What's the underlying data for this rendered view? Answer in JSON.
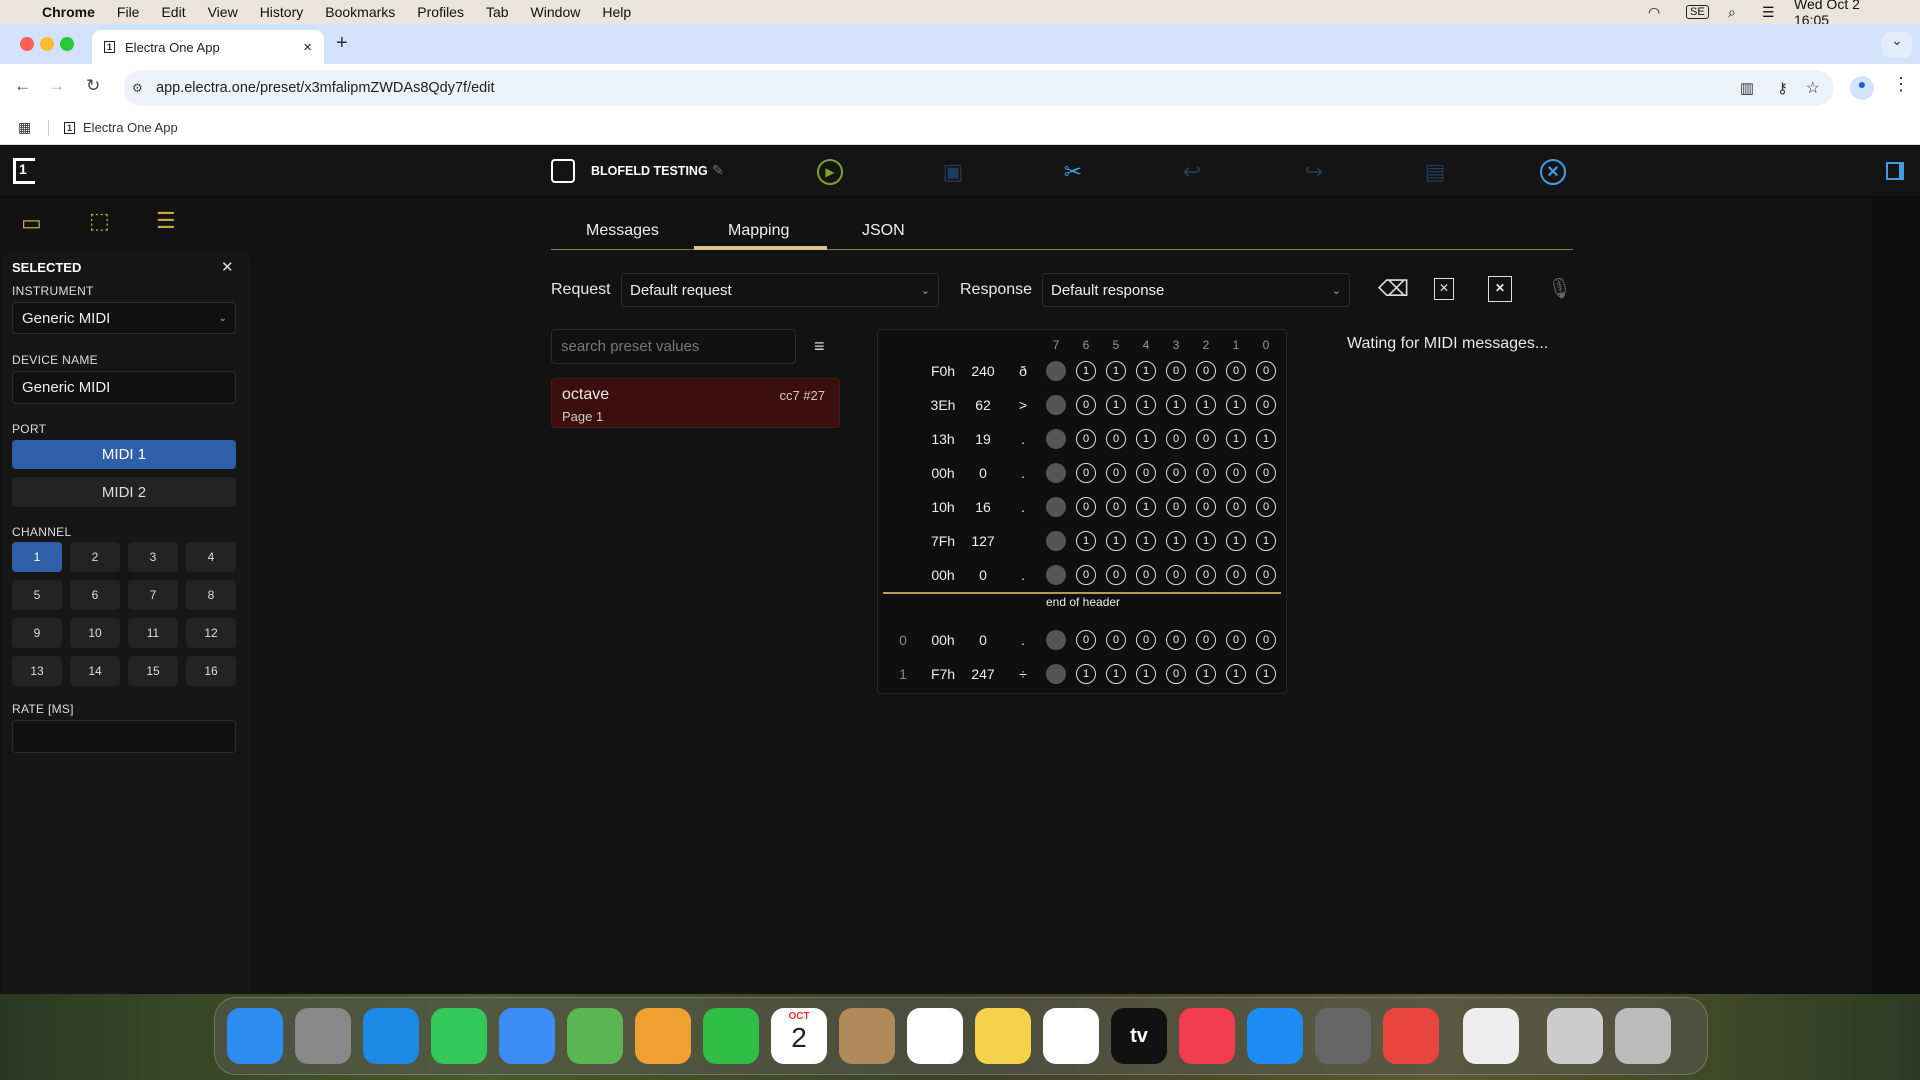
{
  "menubar": {
    "apple": "",
    "app": "Chrome",
    "items": [
      "File",
      "Edit",
      "View",
      "History",
      "Bookmarks",
      "Profiles",
      "Tab",
      "Window",
      "Help"
    ],
    "status_icons": [
      "wifi-icon",
      "input-source-icon",
      "spotlight-icon",
      "control-center-icon"
    ],
    "input_source": "SE",
    "datetime": "Wed Oct 2  16:05"
  },
  "browser": {
    "tab_title": "Electra One App",
    "tab_close": "×",
    "new_tab": "+",
    "url": "app.electra.one/preset/x3mfalipmZWDAs8Qdy7f/edit",
    "bookmark": "Electra One App",
    "tab_menu": "⌄"
  },
  "header": {
    "preset_title": "BLOFELD TESTING",
    "colors": {
      "play": "#7aa32a",
      "accent": "#3f9be8",
      "dim": "#1f3d5e"
    }
  },
  "sidebar": {
    "selected_title": "SELECTED",
    "close": "✕",
    "instrument_label": "INSTRUMENT",
    "instrument_value": "Generic MIDI",
    "device_name_label": "DEVICE NAME",
    "device_name_value": "Generic MIDI",
    "port_label": "PORT",
    "ports": [
      "MIDI 1",
      "MIDI 2"
    ],
    "selected_port": "MIDI 1",
    "channel_label": "CHANNEL",
    "channels": [
      "1",
      "2",
      "3",
      "4",
      "5",
      "6",
      "7",
      "8",
      "9",
      "10",
      "11",
      "12",
      "13",
      "14",
      "15",
      "16"
    ],
    "selected_channel": "1",
    "rate_label": "RATE [MS]",
    "rate_value": ""
  },
  "main": {
    "tabs": [
      "Messages",
      "Mapping",
      "JSON"
    ],
    "active_tab": "Mapping",
    "request_label": "Request",
    "request_value": "Default request",
    "response_label": "Response",
    "response_value": "Default response",
    "search_placeholder": "search preset values",
    "preset_value": {
      "name": "octave",
      "tag": "cc7 #27",
      "page": "Page 1"
    },
    "waiting": "Wating for MIDI messages...",
    "bit_headers": [
      "7",
      "6",
      "5",
      "4",
      "3",
      "2",
      "1",
      "0"
    ],
    "header_rows": [
      {
        "hex": "F0h",
        "dec": "240",
        "chr": "ð",
        "bits": [
          "1",
          "1",
          "1",
          "0",
          "0",
          "0",
          "0"
        ]
      },
      {
        "hex": "3Eh",
        "dec": "62",
        "chr": ">",
        "bits": [
          "0",
          "1",
          "1",
          "1",
          "1",
          "1",
          "0"
        ]
      },
      {
        "hex": "13h",
        "dec": "19",
        "chr": ".",
        "bits": [
          "0",
          "0",
          "1",
          "0",
          "0",
          "1",
          "1"
        ]
      },
      {
        "hex": "00h",
        "dec": "0",
        "chr": ".",
        "bits": [
          "0",
          "0",
          "0",
          "0",
          "0",
          "0",
          "0"
        ]
      },
      {
        "hex": "10h",
        "dec": "16",
        "chr": ".",
        "bits": [
          "0",
          "0",
          "1",
          "0",
          "0",
          "0",
          "0"
        ]
      },
      {
        "hex": "7Fh",
        "dec": "127",
        "chr": "",
        "bits": [
          "1",
          "1",
          "1",
          "1",
          "1",
          "1",
          "1"
        ]
      },
      {
        "hex": "00h",
        "dec": "0",
        "chr": ".",
        "bits": [
          "0",
          "0",
          "0",
          "0",
          "0",
          "0",
          "0"
        ]
      }
    ],
    "end_of_header": "end of header",
    "data_rows": [
      {
        "idx": "0",
        "hex": "00h",
        "dec": "0",
        "chr": ".",
        "bits": [
          "0",
          "0",
          "0",
          "0",
          "0",
          "0",
          "0"
        ]
      },
      {
        "idx": "1",
        "hex": "F7h",
        "dec": "247",
        "chr": "÷",
        "bits": [
          "1",
          "1",
          "1",
          "0",
          "1",
          "1",
          "1"
        ]
      }
    ]
  },
  "dock": {
    "apps": [
      "Finder",
      "Launchpad",
      "Safari",
      "Messages",
      "Mail",
      "Maps",
      "Photos",
      "FaceTime",
      "Calendar",
      "Contacts",
      "Reminders",
      "Notes",
      "Freeform",
      "TV",
      "Music",
      "App Store",
      "System Settings",
      "Chrome",
      "TextEdit",
      "Preview",
      "Trash"
    ],
    "calendar_month": "OCT",
    "calendar_day": "2",
    "tv_label": "tv"
  }
}
